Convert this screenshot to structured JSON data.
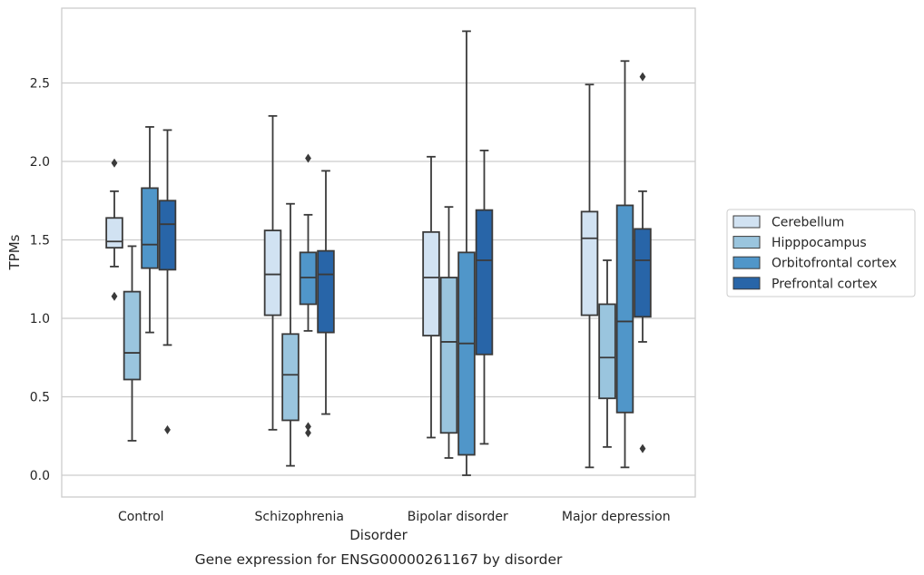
{
  "chart_data": {
    "type": "box",
    "xlabel": "Disorder",
    "ylabel": "TPMs",
    "caption": "Gene expression for ENSG00000261167 by disorder",
    "categories": [
      "Control",
      "Schizophrenia",
      "Bipolar disorder",
      "Major depression"
    ],
    "ylim": [
      -0.14,
      2.98
    ],
    "yticks": [
      0.0,
      0.5,
      1.0,
      1.5,
      2.0,
      2.5
    ],
    "ytick_labels": [
      "0.0",
      "0.5",
      "1.0",
      "1.5",
      "2.0",
      "2.5"
    ],
    "grid": "horizontal",
    "legend_placement": "right",
    "series": [
      {
        "name": "Cerebellum",
        "color": "#d1e2f2",
        "boxes": [
          {
            "whisker_low": 1.33,
            "q1": 1.45,
            "median": 1.49,
            "q3": 1.64,
            "whisker_high": 1.81,
            "outliers": [
              1.99,
              1.14
            ]
          },
          {
            "whisker_low": 0.29,
            "q1": 1.02,
            "median": 1.28,
            "q3": 1.56,
            "whisker_high": 2.29,
            "outliers": []
          },
          {
            "whisker_low": 0.24,
            "q1": 0.89,
            "median": 1.26,
            "q3": 1.55,
            "whisker_high": 2.03,
            "outliers": []
          },
          {
            "whisker_low": 0.05,
            "q1": 1.02,
            "median": 1.51,
            "q3": 1.68,
            "whisker_high": 2.49,
            "outliers": []
          }
        ]
      },
      {
        "name": "Hipppocampus",
        "color": "#9ac5de",
        "boxes": [
          {
            "whisker_low": 0.22,
            "q1": 0.61,
            "median": 0.78,
            "q3": 1.17,
            "whisker_high": 1.46,
            "outliers": []
          },
          {
            "whisker_low": 0.06,
            "q1": 0.35,
            "median": 0.64,
            "q3": 0.9,
            "whisker_high": 1.73,
            "outliers": []
          },
          {
            "whisker_low": 0.11,
            "q1": 0.27,
            "median": 0.85,
            "q3": 1.26,
            "whisker_high": 1.71,
            "outliers": []
          },
          {
            "whisker_low": 0.18,
            "q1": 0.49,
            "median": 0.75,
            "q3": 1.09,
            "whisker_high": 1.37,
            "outliers": []
          }
        ]
      },
      {
        "name": "Orbitofrontal cortex",
        "color": "#5096c9",
        "boxes": [
          {
            "whisker_low": 0.91,
            "q1": 1.32,
            "median": 1.47,
            "q3": 1.83,
            "whisker_high": 2.22,
            "outliers": []
          },
          {
            "whisker_low": 0.92,
            "q1": 1.09,
            "median": 1.26,
            "q3": 1.42,
            "whisker_high": 1.66,
            "outliers": [
              2.02,
              0.31,
              0.27
            ]
          },
          {
            "whisker_low": 0.0,
            "q1": 0.13,
            "median": 0.84,
            "q3": 1.42,
            "whisker_high": 2.83,
            "outliers": []
          },
          {
            "whisker_low": 0.05,
            "q1": 0.4,
            "median": 0.98,
            "q3": 1.72,
            "whisker_high": 2.64,
            "outliers": []
          }
        ]
      },
      {
        "name": "Prefrontal cortex",
        "color": "#2865a8",
        "boxes": [
          {
            "whisker_low": 0.83,
            "q1": 1.31,
            "median": 1.6,
            "q3": 1.75,
            "whisker_high": 2.2,
            "outliers": [
              0.29
            ]
          },
          {
            "whisker_low": 0.39,
            "q1": 0.91,
            "median": 1.28,
            "q3": 1.43,
            "whisker_high": 1.94,
            "outliers": []
          },
          {
            "whisker_low": 0.2,
            "q1": 0.77,
            "median": 1.37,
            "q3": 1.69,
            "whisker_high": 2.07,
            "outliers": []
          },
          {
            "whisker_low": 0.85,
            "q1": 1.01,
            "median": 1.37,
            "q3": 1.57,
            "whisker_high": 1.81,
            "outliers": [
              2.54,
              0.17
            ]
          }
        ]
      }
    ]
  }
}
